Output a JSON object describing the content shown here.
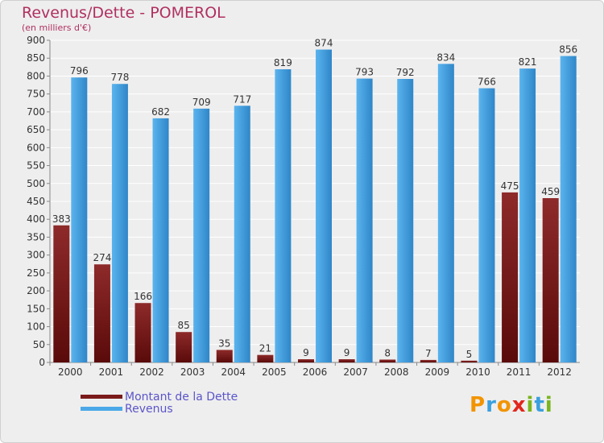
{
  "header": {
    "title": "Revenus/Dette - POMEROL",
    "subtitle": "(en milliers d'€)"
  },
  "legend": {
    "debt_label": "Montant de la Dette",
    "revenue_label": "Revenus"
  },
  "logo": {
    "letters": [
      "P",
      "r",
      "o",
      "x",
      "i",
      "t",
      "i"
    ],
    "colors": [
      "#f29400",
      "#3aa0de",
      "#f29400",
      "#e1261c",
      "#7ab51d",
      "#3aa0de",
      "#7ab51d"
    ]
  },
  "colors": {
    "debt": "#7a1a1a",
    "revenue": "#4aa8e8",
    "background": "#eeeeee",
    "title": "#b03060",
    "legend_text": "#5b55c9"
  },
  "chart_data": {
    "type": "bar",
    "categories": [
      "2000",
      "2001",
      "2002",
      "2003",
      "2004",
      "2005",
      "2006",
      "2007",
      "2008",
      "2009",
      "2010",
      "2011",
      "2012"
    ],
    "series": [
      {
        "name": "Montant de la Dette",
        "values": [
          383,
          274,
          166,
          85,
          35,
          21,
          9,
          9,
          8,
          7,
          5,
          475,
          459
        ]
      },
      {
        "name": "Revenus",
        "values": [
          796,
          778,
          682,
          709,
          717,
          819,
          874,
          793,
          792,
          834,
          766,
          821,
          856
        ]
      }
    ],
    "ylim": [
      0,
      900
    ],
    "yticks": [
      0,
      50,
      100,
      150,
      200,
      250,
      300,
      350,
      400,
      450,
      500,
      550,
      600,
      650,
      700,
      750,
      800,
      850,
      900
    ],
    "grid": true,
    "legend_position": "bottom-left"
  }
}
